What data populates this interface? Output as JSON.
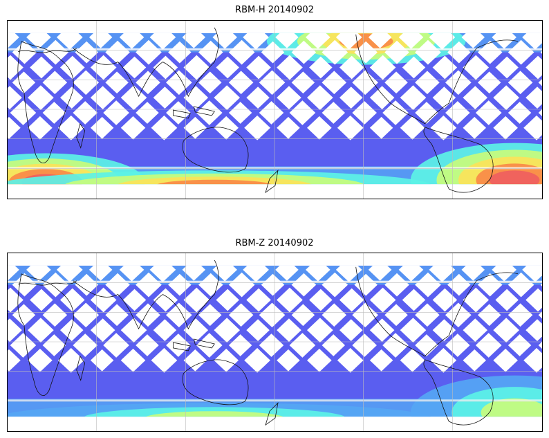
{
  "maps": [
    {
      "title": "RBM-H 20140902",
      "colormap": [
        "#5a5ef0",
        "#55a6f4",
        "#5cf2e6",
        "#c8fc7c",
        "#fbe35a",
        "#f88a48",
        "#ef5f5f"
      ],
      "warm_regions": [
        {
          "name": "north-pacific-band",
          "intensity": 0.75
        },
        {
          "name": "south-atlantic",
          "intensity": 0.95
        },
        {
          "name": "southern-ocean-west",
          "intensity": 0.85
        },
        {
          "name": "southern-ocean-central",
          "intensity": 0.55
        }
      ]
    },
    {
      "title": "RBM-Z 20140902",
      "colormap": [
        "#5a5ef0",
        "#55a6f4",
        "#5cf2e6",
        "#c8fc7c",
        "#fbe35a",
        "#f88a48",
        "#ef5f5f"
      ],
      "warm_regions": [
        {
          "name": "south-atlantic",
          "intensity": 0.45
        },
        {
          "name": "southern-ocean-central",
          "intensity": 0.35
        }
      ]
    }
  ]
}
